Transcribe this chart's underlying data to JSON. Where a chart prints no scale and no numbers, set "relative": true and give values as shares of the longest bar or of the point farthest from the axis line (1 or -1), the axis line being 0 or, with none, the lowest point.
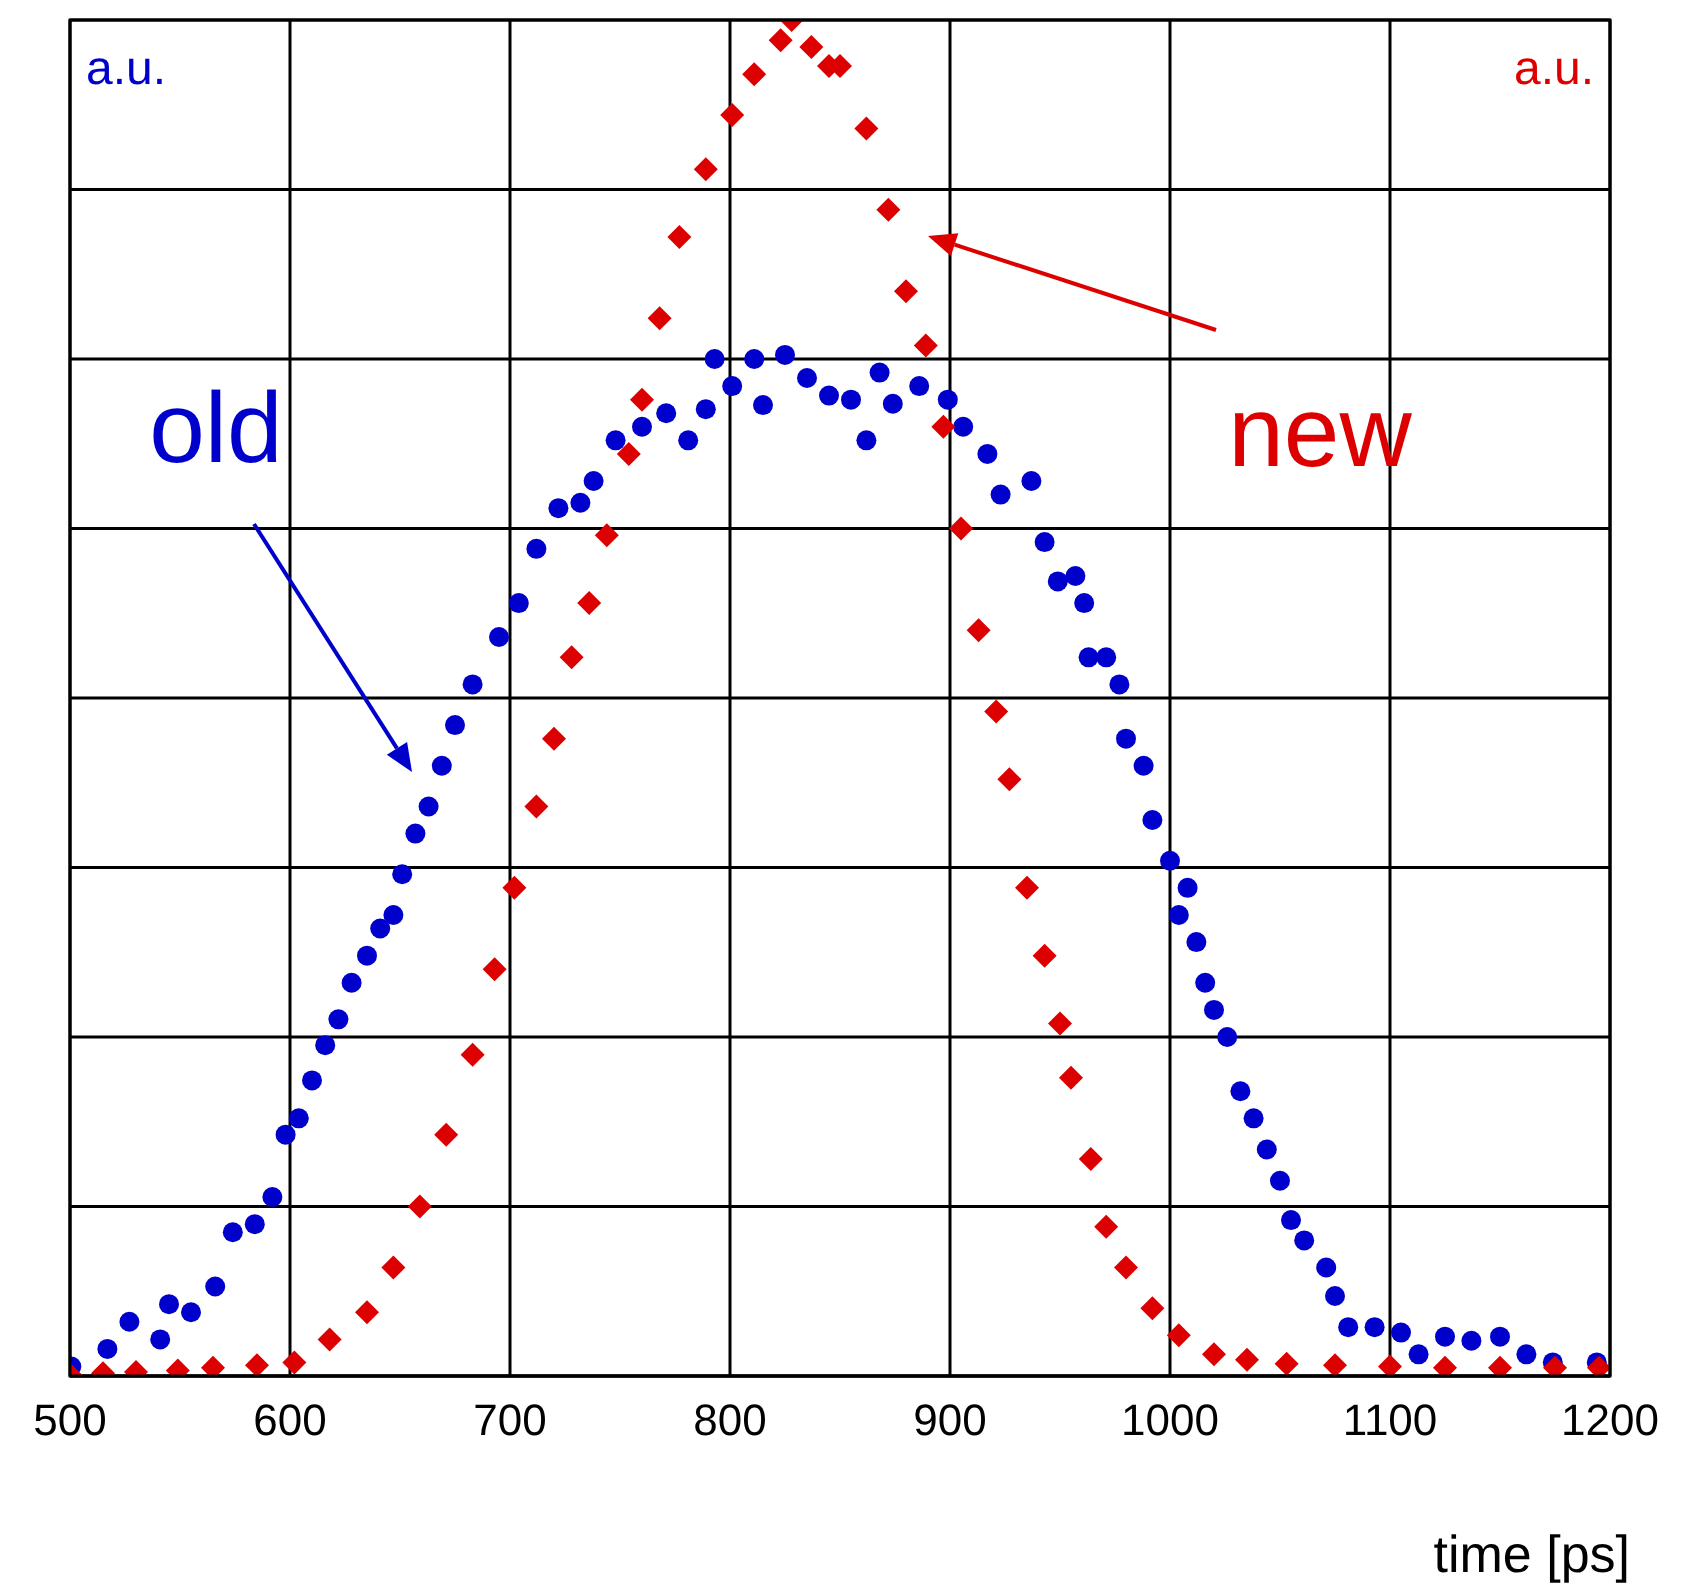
{
  "chart_data": {
    "type": "scatter",
    "relative": true,
    "xlabel": "time [ps]",
    "ylabel": "a.u.",
    "y2label": "a.u.",
    "xlim": [
      500,
      1200
    ],
    "xticks": [
      500,
      600,
      700,
      800,
      900,
      1000,
      1100,
      1200
    ],
    "grid": true,
    "annotations": [
      "old",
      "new"
    ],
    "series": [
      {
        "color": "#0000cc",
        "marker": "circle",
        "x": [
          500.6,
          517,
          527,
          541,
          545,
          555,
          566,
          574,
          584,
          592,
          598,
          604,
          610,
          616,
          622,
          628,
          635,
          641,
          647,
          651,
          657,
          663,
          669,
          675,
          683,
          695,
          704,
          712,
          722,
          732,
          738,
          748,
          760,
          771,
          781,
          789,
          793,
          801,
          811,
          815,
          825,
          835,
          845,
          855,
          862,
          868,
          874,
          886,
          899,
          906,
          917,
          923,
          937,
          943,
          949,
          957,
          961,
          963,
          971,
          977,
          980,
          988,
          992,
          1000,
          1004,
          1008,
          1012,
          1016,
          1020,
          1026,
          1032,
          1038,
          1044,
          1050,
          1055,
          1061,
          1071,
          1075,
          1081,
          1093,
          1105,
          1113,
          1125,
          1137,
          1150,
          1162,
          1174,
          1194
        ],
        "values": [
          0.007,
          0.02,
          0.04,
          0.027,
          0.053,
          0.047,
          0.066,
          0.106,
          0.112,
          0.132,
          0.178,
          0.19,
          0.218,
          0.244,
          0.263,
          0.29,
          0.31,
          0.33,
          0.34,
          0.37,
          0.4,
          0.42,
          0.45,
          0.48,
          0.51,
          0.545,
          0.57,
          0.61,
          0.64,
          0.644,
          0.66,
          0.69,
          0.7,
          0.71,
          0.69,
          0.713,
          0.75,
          0.73,
          0.75,
          0.716,
          0.753,
          0.736,
          0.723,
          0.72,
          0.69,
          0.74,
          0.717,
          0.73,
          0.72,
          0.7,
          0.68,
          0.65,
          0.66,
          0.615,
          0.586,
          0.59,
          0.57,
          0.53,
          0.53,
          0.51,
          0.47,
          0.45,
          0.41,
          0.38,
          0.34,
          0.36,
          0.32,
          0.29,
          0.27,
          0.25,
          0.21,
          0.19,
          0.167,
          0.144,
          0.115,
          0.1,
          0.08,
          0.059,
          0.036,
          0.036,
          0.032,
          0.016,
          0.029,
          0.026,
          0.029,
          0.016,
          0.01,
          0.01
        ]
      },
      {
        "color": "#dd0000",
        "marker": "diamond",
        "x": [
          500.6,
          515,
          530,
          549,
          565,
          585,
          602,
          618,
          635,
          647,
          659,
          671,
          683,
          693,
          702,
          712,
          720,
          728,
          736,
          744,
          754,
          760,
          768,
          777,
          789,
          801,
          811,
          823,
          828,
          837,
          845,
          850,
          862,
          872,
          880,
          889,
          897,
          905,
          913,
          921,
          927,
          935,
          943,
          950,
          955,
          964,
          971,
          980,
          992,
          1004,
          1020,
          1035,
          1053,
          1075,
          1100,
          1125,
          1150,
          1175,
          1195
        ],
        "values": [
          0,
          0.002,
          0.003,
          0.004,
          0.006,
          0.008,
          0.01,
          0.027,
          0.047,
          0.08,
          0.125,
          0.178,
          0.237,
          0.3,
          0.36,
          0.42,
          0.47,
          0.53,
          0.57,
          0.62,
          0.68,
          0.72,
          0.78,
          0.84,
          0.89,
          0.93,
          0.96,
          0.985,
          1,
          0.98,
          0.966,
          0.966,
          0.92,
          0.86,
          0.8,
          0.76,
          0.7,
          0.625,
          0.55,
          0.49,
          0.44,
          0.36,
          0.31,
          0.26,
          0.22,
          0.16,
          0.11,
          0.08,
          0.05,
          0.03,
          0.016,
          0.012,
          0.009,
          0.008,
          0.007,
          0.006,
          0.006,
          0.006,
          0.006
        ]
      }
    ]
  }
}
